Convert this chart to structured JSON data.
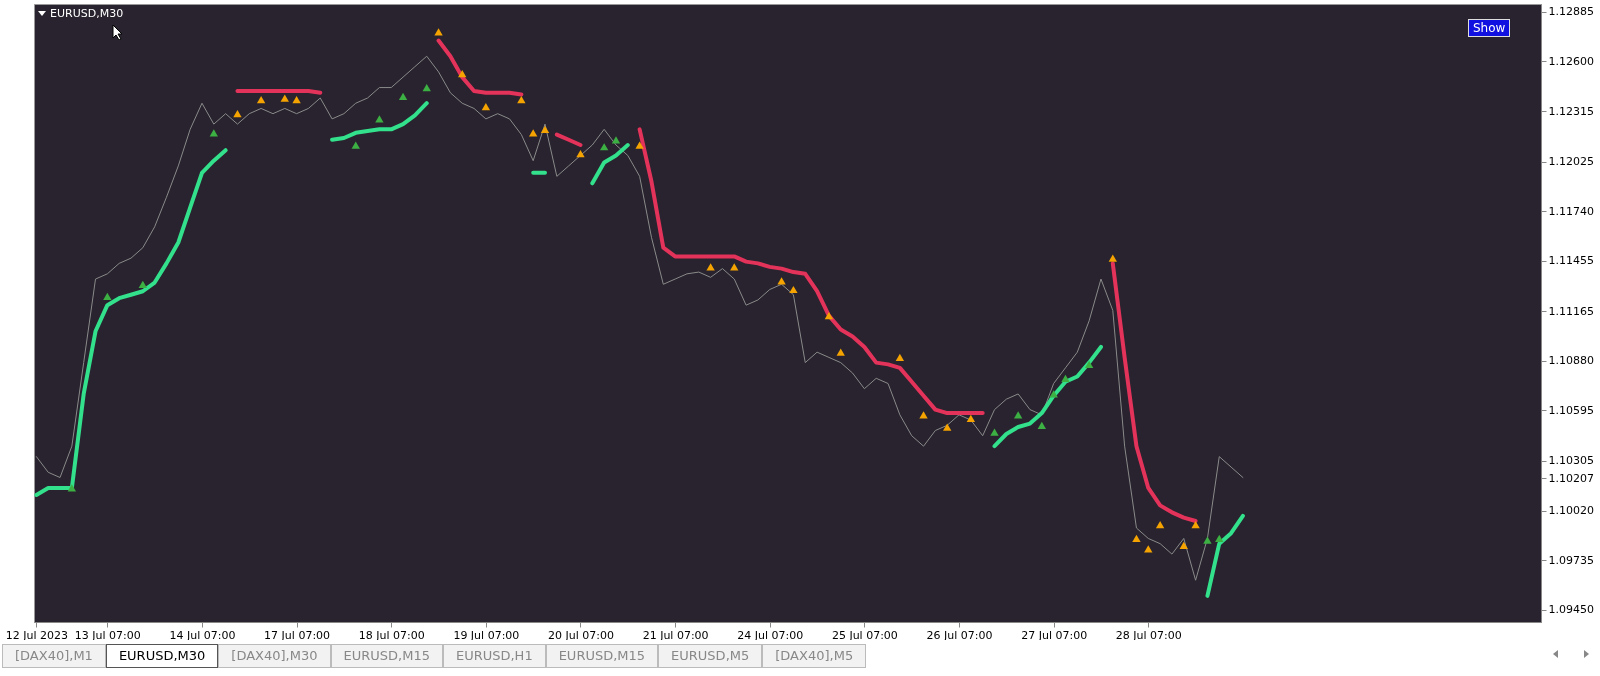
{
  "chart_data": {
    "type": "line",
    "title": "EURUSD,M30",
    "categories": [
      "12 Jul 2023",
      null,
      null,
      null,
      null,
      null,
      "13 Jul 07:00",
      null,
      null,
      null,
      null,
      null,
      null,
      null,
      "14 Jul 07:00",
      null,
      null,
      null,
      null,
      null,
      null,
      null,
      "17 Jul 07:00",
      null,
      null,
      null,
      null,
      null,
      null,
      null,
      "18 Jul 07:00",
      null,
      null,
      null,
      null,
      null,
      null,
      null,
      "19 Jul 07:00",
      null,
      null,
      null,
      null,
      null,
      null,
      null,
      "20 Jul 07:00",
      null,
      null,
      null,
      null,
      null,
      null,
      null,
      "21 Jul 07:00",
      null,
      null,
      null,
      null,
      null,
      null,
      null,
      "24 Jul 07:00",
      null,
      null,
      null,
      null,
      null,
      null,
      null,
      "25 Jul 07:00",
      null,
      null,
      null,
      null,
      null,
      null,
      null,
      "26 Jul 07:00",
      null,
      null,
      null,
      null,
      null,
      null,
      null,
      "27 Jul 07:00",
      null,
      null,
      null,
      null,
      null,
      null,
      null,
      "28 Jul 07:00",
      null,
      null,
      null,
      null,
      null,
      null,
      null,
      null,
      null,
      null,
      null,
      null,
      null,
      null,
      null,
      null,
      null,
      null,
      null,
      null,
      null,
      null,
      null,
      null,
      null,
      null,
      null,
      null,
      null,
      null,
      null,
      null,
      null
    ],
    "series": [
      {
        "color": "#8a8a8a",
        "values": [
          1.1033,
          1.1024,
          1.1021,
          1.1039,
          1.1087,
          1.1135,
          1.1138,
          1.1144,
          1.1147,
          1.1153,
          1.1165,
          1.1182,
          1.12,
          1.1221,
          1.1236,
          1.1224,
          1.123,
          1.1224,
          1.123,
          1.1233,
          1.123,
          1.1233,
          1.123,
          1.1233,
          1.1239,
          1.1227,
          1.123,
          1.1236,
          1.1239,
          1.1245,
          1.1245,
          1.1251,
          1.1257,
          1.1263,
          1.1254,
          1.1242,
          1.1236,
          1.1233,
          1.1227,
          1.123,
          1.1227,
          1.1218,
          1.1203,
          1.1224,
          1.1194,
          1.12,
          1.1206,
          1.1212,
          1.1221,
          1.1212,
          1.1206,
          1.1194,
          1.1159,
          1.1132,
          1.1135,
          1.1138,
          1.1139,
          1.1136,
          1.1141,
          1.1135,
          1.112,
          1.1123,
          1.1129,
          1.1132,
          1.1126,
          1.1087,
          1.1093,
          1.109,
          1.1087,
          1.1081,
          1.1072,
          1.1078,
          1.1075,
          1.1057,
          1.1045,
          1.1039,
          1.1048,
          1.1051,
          1.1057,
          1.1054,
          1.1045,
          1.106,
          1.1066,
          1.1069,
          1.106,
          1.1057,
          1.1075,
          1.1084,
          1.1093,
          1.1111,
          1.1135,
          1.1117,
          1.1039,
          1.0992,
          1.0986,
          1.0983,
          1.0977,
          1.0986,
          1.0962,
          1.0986,
          1.1033,
          1.1027,
          1.1021,
          null,
          null,
          null,
          null,
          null,
          null,
          null,
          null,
          null,
          null,
          null,
          null,
          null,
          null,
          null,
          null,
          null,
          null,
          null,
          null,
          null,
          null,
          null,
          null,
          null
        ]
      },
      {
        "color": "#33e08c",
        "values": [
          1.1011,
          1.1015,
          1.1015,
          1.1015,
          1.1069,
          1.1105,
          1.112,
          1.1124,
          1.1126,
          1.1128,
          1.1133,
          1.1144,
          1.1156,
          1.1176,
          1.1196,
          1.1203,
          1.1209,
          null,
          null,
          null,
          null,
          null,
          null,
          null,
          null,
          1.1215,
          1.1216,
          1.1219,
          1.122,
          1.1221,
          1.1221,
          1.1224,
          1.1229,
          1.1236,
          null,
          null,
          null,
          null,
          null,
          null,
          null,
          null,
          1.1196,
          1.1196,
          null,
          null,
          null,
          1.119,
          1.1202,
          1.1206,
          1.1212,
          null,
          null,
          null,
          null,
          null,
          null,
          null,
          null,
          null,
          null,
          null,
          null,
          null,
          null,
          null,
          null,
          null,
          null,
          null,
          null,
          null,
          null,
          null,
          null,
          null,
          null,
          null,
          null,
          null,
          null,
          1.1039,
          1.1046,
          1.105,
          1.1052,
          1.1058,
          1.1068,
          1.1076,
          1.1079,
          1.1087,
          1.1096,
          null,
          null,
          null,
          null,
          null,
          null,
          null,
          null,
          1.0953,
          1.0983,
          1.0989,
          1.0999,
          null,
          null,
          null,
          null,
          null,
          null,
          null,
          null,
          null,
          null,
          null,
          null,
          null,
          null,
          null,
          null,
          null,
          null,
          null,
          null,
          null,
          null,
          null,
          null,
          null
        ]
      },
      {
        "color": "#e3335a",
        "values": [
          null,
          null,
          null,
          null,
          null,
          null,
          null,
          null,
          null,
          null,
          null,
          null,
          null,
          null,
          null,
          null,
          null,
          1.1243,
          1.1243,
          1.1243,
          1.1243,
          1.1243,
          1.1243,
          1.1243,
          1.1242,
          null,
          null,
          null,
          null,
          null,
          null,
          null,
          null,
          null,
          1.1272,
          1.1263,
          1.1251,
          1.1243,
          1.1242,
          1.1242,
          1.1242,
          1.1241,
          null,
          null,
          1.1218,
          1.1215,
          1.1212,
          null,
          null,
          null,
          null,
          1.1221,
          1.1191,
          1.1153,
          1.1148,
          1.1148,
          1.1148,
          1.1148,
          1.1148,
          1.1148,
          1.1145,
          1.1144,
          1.1142,
          1.1141,
          1.1139,
          1.1138,
          1.1128,
          1.1114,
          1.1106,
          1.1102,
          1.1096,
          1.1087,
          1.1086,
          1.1084,
          1.1076,
          1.1068,
          1.106,
          1.1058,
          1.1058,
          1.1058,
          1.1058,
          null,
          null,
          null,
          null,
          null,
          null,
          null,
          null,
          null,
          null,
          1.1144,
          1.109,
          1.1039,
          1.1015,
          1.1005,
          1.1001,
          1.0998,
          1.0996,
          null,
          null,
          null,
          null,
          null,
          null,
          null,
          null,
          null,
          null,
          null,
          null,
          null,
          null,
          null,
          null,
          null,
          null,
          null,
          null,
          null,
          null,
          null,
          null,
          null,
          null,
          null,
          null,
          null
        ]
      },
      {
        "type": "scatter",
        "marker": "triangle",
        "color": "#3cb043",
        "values": [
          null,
          null,
          null,
          1.1015,
          null,
          null,
          1.1125,
          null,
          null,
          1.1132,
          null,
          null,
          null,
          null,
          null,
          1.1219,
          null,
          null,
          null,
          null,
          null,
          null,
          null,
          null,
          null,
          null,
          null,
          1.1212,
          null,
          1.1227,
          null,
          1.124,
          null,
          1.1245,
          null,
          null,
          null,
          null,
          null,
          null,
          null,
          null,
          null,
          null,
          null,
          null,
          null,
          null,
          1.1211,
          1.1215,
          null,
          null,
          null,
          null,
          null,
          null,
          null,
          null,
          null,
          null,
          null,
          null,
          null,
          null,
          null,
          null,
          null,
          null,
          null,
          null,
          null,
          null,
          null,
          null,
          null,
          null,
          null,
          null,
          null,
          null,
          null,
          1.1047,
          null,
          1.1057,
          null,
          1.1051,
          1.1069,
          1.1078,
          null,
          1.1086,
          null,
          null,
          null,
          null,
          null,
          null,
          null,
          null,
          null,
          1.0985,
          1.0986,
          null,
          null,
          null,
          null,
          null,
          null,
          null,
          null,
          null,
          null,
          null,
          null,
          null,
          null,
          null,
          null,
          null,
          null,
          null,
          null,
          null,
          null,
          null,
          null,
          null,
          null,
          null
        ]
      },
      {
        "type": "scatter",
        "marker": "triangle",
        "color": "#f5a300",
        "values": [
          null,
          null,
          null,
          null,
          null,
          null,
          null,
          null,
          null,
          null,
          null,
          null,
          null,
          null,
          null,
          null,
          null,
          1.123,
          null,
          1.1238,
          null,
          1.1239,
          1.1238,
          null,
          null,
          null,
          null,
          null,
          null,
          null,
          null,
          null,
          null,
          null,
          1.1277,
          null,
          1.1253,
          null,
          1.1234,
          null,
          null,
          1.1238,
          1.1219,
          1.1221,
          null,
          null,
          1.1207,
          null,
          null,
          null,
          null,
          1.1212,
          null,
          null,
          null,
          null,
          null,
          1.1142,
          null,
          1.1142,
          null,
          null,
          null,
          1.1134,
          1.1129,
          null,
          null,
          1.1114,
          1.1093,
          null,
          null,
          null,
          null,
          1.109,
          null,
          1.1057,
          null,
          1.105,
          null,
          1.1055,
          null,
          null,
          null,
          null,
          null,
          null,
          null,
          null,
          null,
          null,
          null,
          1.1147,
          null,
          1.0986,
          1.098,
          1.0994,
          null,
          1.0982,
          1.0994,
          null,
          null,
          null,
          null,
          null,
          null,
          null,
          null,
          null,
          null,
          null,
          null,
          null,
          null,
          null,
          null,
          null,
          null,
          null,
          null,
          null,
          null,
          null,
          null,
          null,
          null,
          null,
          null,
          null
        ]
      }
    ],
    "ylim": [
      1.0938,
      1.1293
    ],
    "yticks": [
      {
        "value": 1.0945,
        "label": "1.09450"
      },
      1.09735,
      {
        "value": 1.1002,
        "label": "1.10020"
      },
      {
        "value": 1.10207,
        "label": "1.10207"
      },
      1.10305,
      1.10595,
      {
        "value": 1.1088,
        "label": "1.10880"
      },
      1.11165,
      1.11455,
      {
        "value": 1.1174,
        "label": "1.11740"
      },
      1.12025,
      1.12315,
      {
        "value": 1.126,
        "label": "1.12600"
      },
      1.12885
    ],
    "annotations": [
      "Show",
      "[DAX40],M1",
      "EURUSD,M30",
      "[DAX40],M30",
      "EURUSD,M15",
      "EURUSD,H1",
      "EURUSD,M15",
      "EURUSD,M5",
      "[DAX40],M5"
    ]
  }
}
